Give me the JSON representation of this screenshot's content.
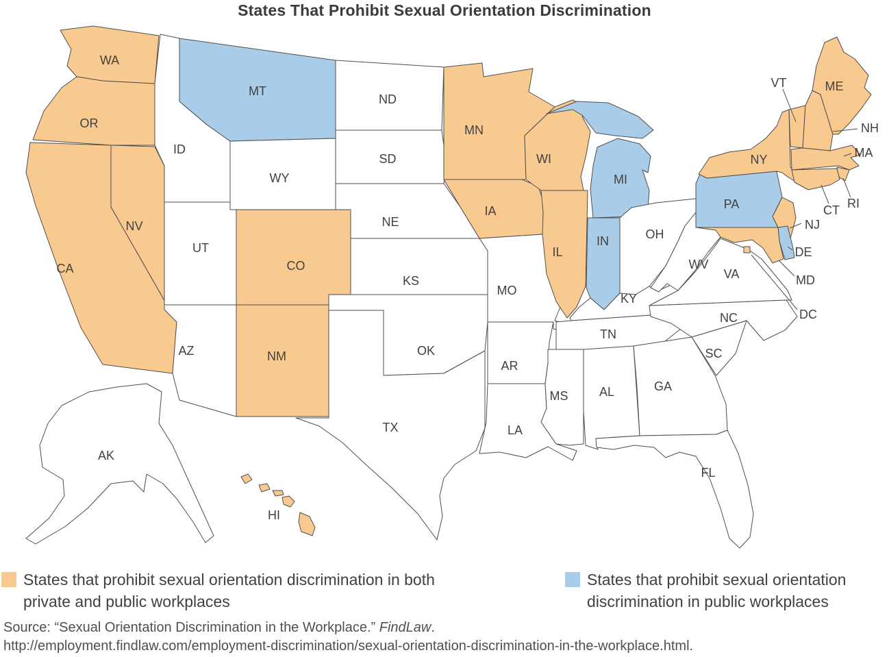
{
  "title": "States That Prohibit Sexual Orientation Discrimination",
  "colors": {
    "both": "#F9CA8F",
    "public": "#A9CDE9",
    "none": "#FFFFFF",
    "border": "#4d4d4d"
  },
  "legend": [
    {
      "category": "both",
      "color": "#F9CA8F",
      "lines": [
        "States that prohibit sexual orientation discrimination in both",
        "private and public workplaces"
      ]
    },
    {
      "category": "public",
      "color": "#A9CDE9",
      "lines": [
        "States that prohibit sexual orientation",
        "discrimination in public workplaces"
      ]
    }
  ],
  "source": {
    "line1_prefix": "Source: “Sexual Orientation Discrimination in the Workplace.” ",
    "line1_italic": "FindLaw",
    "line1_suffix": ".",
    "line2": "http://employment.findlaw.com/employment-discrimination/sexual-orientation-discrimination-in-the-workplace.html."
  },
  "states": [
    {
      "abbr": "WA",
      "category": "both"
    },
    {
      "abbr": "OR",
      "category": "both"
    },
    {
      "abbr": "CA",
      "category": "both"
    },
    {
      "abbr": "NV",
      "category": "both"
    },
    {
      "abbr": "ID",
      "category": "none"
    },
    {
      "abbr": "MT",
      "category": "public"
    },
    {
      "abbr": "WY",
      "category": "none"
    },
    {
      "abbr": "UT",
      "category": "none"
    },
    {
      "abbr": "AZ",
      "category": "none"
    },
    {
      "abbr": "CO",
      "category": "both"
    },
    {
      "abbr": "NM",
      "category": "both"
    },
    {
      "abbr": "ND",
      "category": "none"
    },
    {
      "abbr": "SD",
      "category": "none"
    },
    {
      "abbr": "NE",
      "category": "none"
    },
    {
      "abbr": "KS",
      "category": "none"
    },
    {
      "abbr": "OK",
      "category": "none"
    },
    {
      "abbr": "TX",
      "category": "none"
    },
    {
      "abbr": "MN",
      "category": "both"
    },
    {
      "abbr": "IA",
      "category": "both"
    },
    {
      "abbr": "MO",
      "category": "none"
    },
    {
      "abbr": "AR",
      "category": "none"
    },
    {
      "abbr": "LA",
      "category": "none"
    },
    {
      "abbr": "WI",
      "category": "both"
    },
    {
      "abbr": "IL",
      "category": "both"
    },
    {
      "abbr": "MI",
      "category": "public"
    },
    {
      "abbr": "IN",
      "category": "public"
    },
    {
      "abbr": "OH",
      "category": "none"
    },
    {
      "abbr": "KY",
      "category": "none"
    },
    {
      "abbr": "TN",
      "category": "none"
    },
    {
      "abbr": "MS",
      "category": "none"
    },
    {
      "abbr": "AL",
      "category": "none"
    },
    {
      "abbr": "GA",
      "category": "none"
    },
    {
      "abbr": "FL",
      "category": "none"
    },
    {
      "abbr": "SC",
      "category": "none"
    },
    {
      "abbr": "NC",
      "category": "none"
    },
    {
      "abbr": "VA",
      "category": "none"
    },
    {
      "abbr": "WV",
      "category": "none"
    },
    {
      "abbr": "PA",
      "category": "public"
    },
    {
      "abbr": "NY",
      "category": "both"
    },
    {
      "abbr": "NJ",
      "category": "both"
    },
    {
      "abbr": "DE",
      "category": "public"
    },
    {
      "abbr": "MD",
      "category": "both"
    },
    {
      "abbr": "VT",
      "category": "both"
    },
    {
      "abbr": "NH",
      "category": "both"
    },
    {
      "abbr": "ME",
      "category": "both"
    },
    {
      "abbr": "MA",
      "category": "both"
    },
    {
      "abbr": "RI",
      "category": "both"
    },
    {
      "abbr": "CT",
      "category": "both"
    },
    {
      "abbr": "AK",
      "category": "none"
    },
    {
      "abbr": "HI",
      "category": "both"
    },
    {
      "abbr": "DC",
      "category": "both"
    }
  ]
}
